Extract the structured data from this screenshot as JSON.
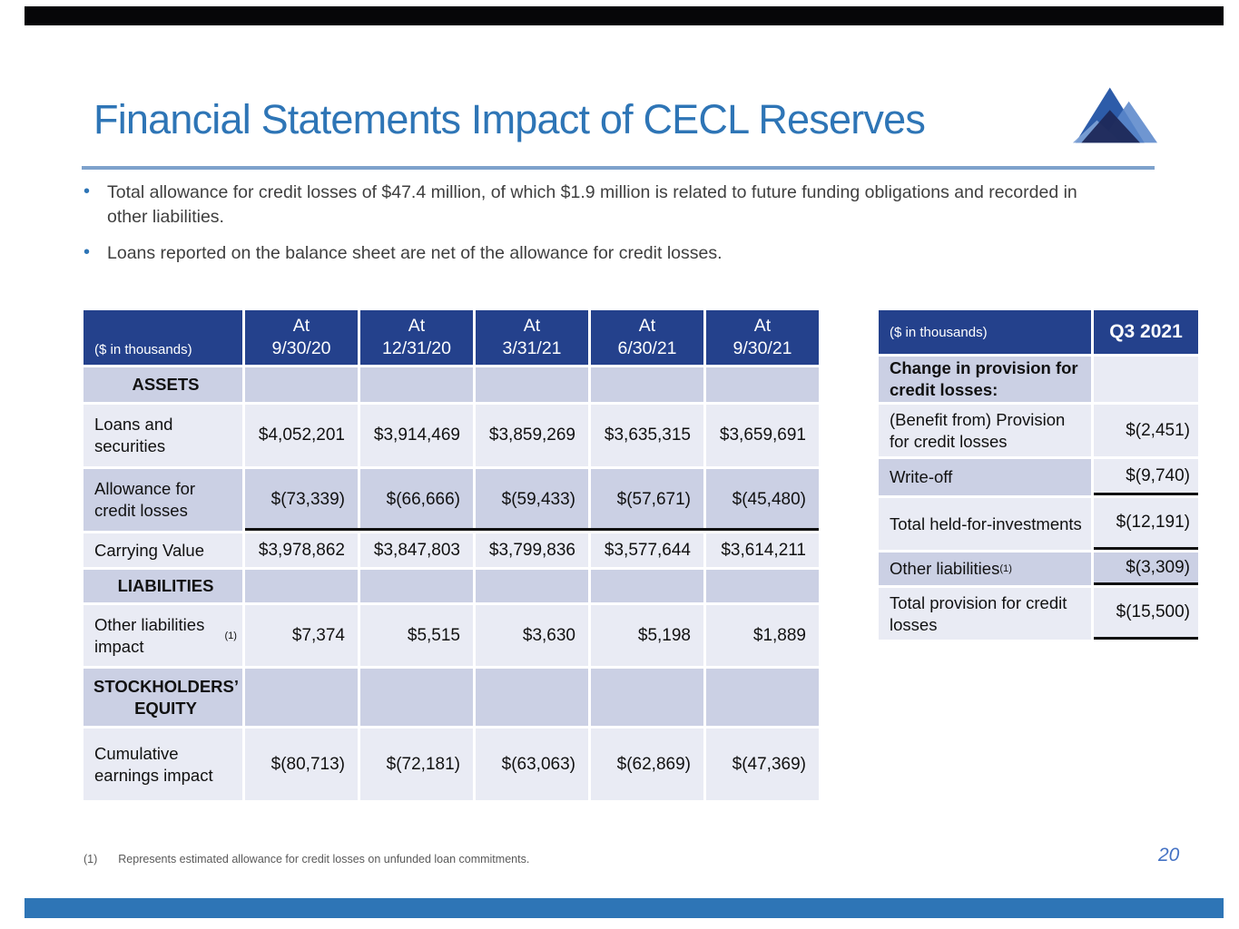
{
  "slide": {
    "title": "Financial Statements Impact of CECL Reserves",
    "bullets": [
      "Total allowance for credit losses of $47.4 million, of which $1.9 million is related to future funding obligations and recorded in other liabilities.",
      "Loans reported on the balance sheet are net of the allowance for credit losses."
    ],
    "footnote_marker": "(1)",
    "footnote_text": "Represents estimated allowance for credit losses on unfunded loan commitments.",
    "page_number": "20"
  },
  "colors": {
    "title_blue": "#2E75B6",
    "rule_blue": "#7EA2CC",
    "table_header_blue": "#24418C",
    "row_dark": "#CBD0E4",
    "row_light": "#E9EBF4",
    "bottom_bar_blue": "#2E75B6",
    "top_bar_black": "#060608",
    "page_number_blue": "#4472C4",
    "logo_blues": [
      "#2D5CA9",
      "#5B87CB",
      "#7FA3D6",
      "#1E2A5A"
    ]
  },
  "main_table": {
    "unit_label": "($ in thousands)",
    "columns": [
      {
        "line1": "At",
        "line2": "9/30/20"
      },
      {
        "line1": "At",
        "line2": "12/31/20"
      },
      {
        "line1": "At",
        "line2": "3/31/21"
      },
      {
        "line1": "At",
        "line2": "6/30/21"
      },
      {
        "line1": "At",
        "line2": "9/30/21"
      }
    ],
    "rows": [
      {
        "type": "section",
        "label": "ASSETS",
        "shade": "dark"
      },
      {
        "type": "data",
        "label": "Loans and securities",
        "shade": "light",
        "values": [
          "$4,052,201",
          "$3,914,469",
          "$3,859,269",
          "$3,635,315",
          "$3,659,691"
        ]
      },
      {
        "type": "data",
        "label": "Allowance for credit losses",
        "shade": "dark",
        "underline": true,
        "values": [
          "$(73,339)",
          "$(66,666)",
          "$(59,433)",
          "$(57,671)",
          "$(45,480)"
        ]
      },
      {
        "type": "data",
        "label": "Carrying Value",
        "shade": "light",
        "values": [
          "$3,978,862",
          "$3,847,803",
          "$3,799,836",
          "$3,577,644",
          "$3,614,211"
        ]
      },
      {
        "type": "section",
        "label": "LIABILITIES",
        "shade": "dark"
      },
      {
        "type": "data",
        "label": "Other liabilities impact",
        "sup": "(1)",
        "shade": "light",
        "values": [
          "$7,374",
          "$5,515",
          "$3,630",
          "$5,198",
          "$1,889"
        ]
      },
      {
        "type": "section",
        "label": "STOCKHOLDERS’ EQUITY",
        "shade": "dark"
      },
      {
        "type": "data",
        "label": "Cumulative earnings impact",
        "shade": "light",
        "values": [
          "$(80,713)",
          "$(72,181)",
          "$(63,063)",
          "$(62,869)",
          "$(47,369)"
        ]
      }
    ]
  },
  "q3_table": {
    "unit_label": "($ in thousands)",
    "period_label": "Q3 2021",
    "rows": [
      {
        "label": "Change in provision for credit losses:",
        "value": "",
        "shade": "dark",
        "value_shade": "light",
        "bold": true,
        "indent": 0
      },
      {
        "label": "(Benefit from) Provision for credit losses",
        "value": "$(2,451)",
        "shade": "light",
        "value_shade": "light",
        "indent": 1
      },
      {
        "label": "Write-off",
        "value": "$(9,740)",
        "shade": "dark",
        "value_shade": "light",
        "indent": 1,
        "underline": true
      },
      {
        "label": "Total held-for-investments",
        "value": "$(12,191)",
        "shade": "light",
        "value_shade": "light",
        "indent": 2,
        "underline": true
      },
      {
        "label": "Other liabilities",
        "sup": "(1)",
        "value": "$(3,309)",
        "shade": "dark",
        "value_shade": "dark",
        "indent": 1,
        "underline": true
      },
      {
        "label": "Total provision for credit losses",
        "value": "$(15,500)",
        "shade": "light",
        "value_shade": "light",
        "indent": 2,
        "underline": true
      }
    ]
  }
}
